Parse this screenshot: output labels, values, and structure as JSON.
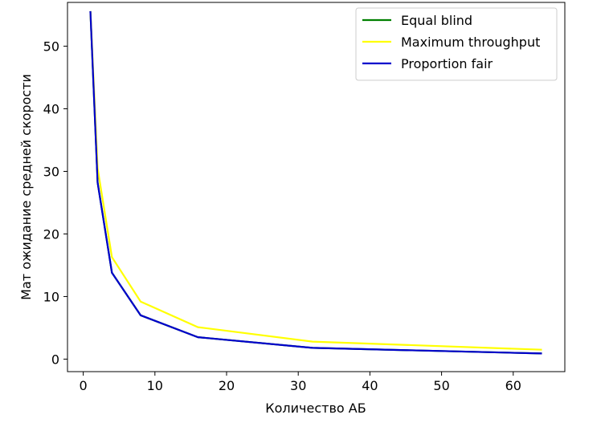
{
  "chart_data": {
    "type": "line",
    "xlabel": "Количество АБ",
    "ylabel": "Мат ожидание средней скорости",
    "xlim": [
      -2.2,
      67.2
    ],
    "ylim": [
      -2,
      57
    ],
    "xticks": [
      0,
      10,
      20,
      30,
      40,
      50,
      60
    ],
    "yticks": [
      0,
      10,
      20,
      30,
      40,
      50
    ],
    "grid": false,
    "legend_position": "top-right",
    "series": [
      {
        "name": "Equal blind",
        "color": "#008000",
        "x": [
          1,
          2,
          4,
          8,
          16,
          32,
          64
        ],
        "y": [
          55.6,
          28.2,
          13.8,
          7.0,
          3.5,
          1.8,
          0.9
        ]
      },
      {
        "name": "Maximum throughput",
        "color": "#ffff00",
        "x": [
          1,
          2,
          4,
          8,
          16,
          32,
          64
        ],
        "y": [
          55.6,
          30.5,
          16.3,
          9.2,
          5.1,
          2.8,
          1.5
        ]
      },
      {
        "name": "Proportion fair",
        "color": "#0000cc",
        "x": [
          1,
          2,
          4,
          8,
          16,
          32,
          64
        ],
        "y": [
          55.6,
          28.2,
          13.8,
          7.0,
          3.5,
          1.8,
          0.9
        ]
      }
    ]
  }
}
